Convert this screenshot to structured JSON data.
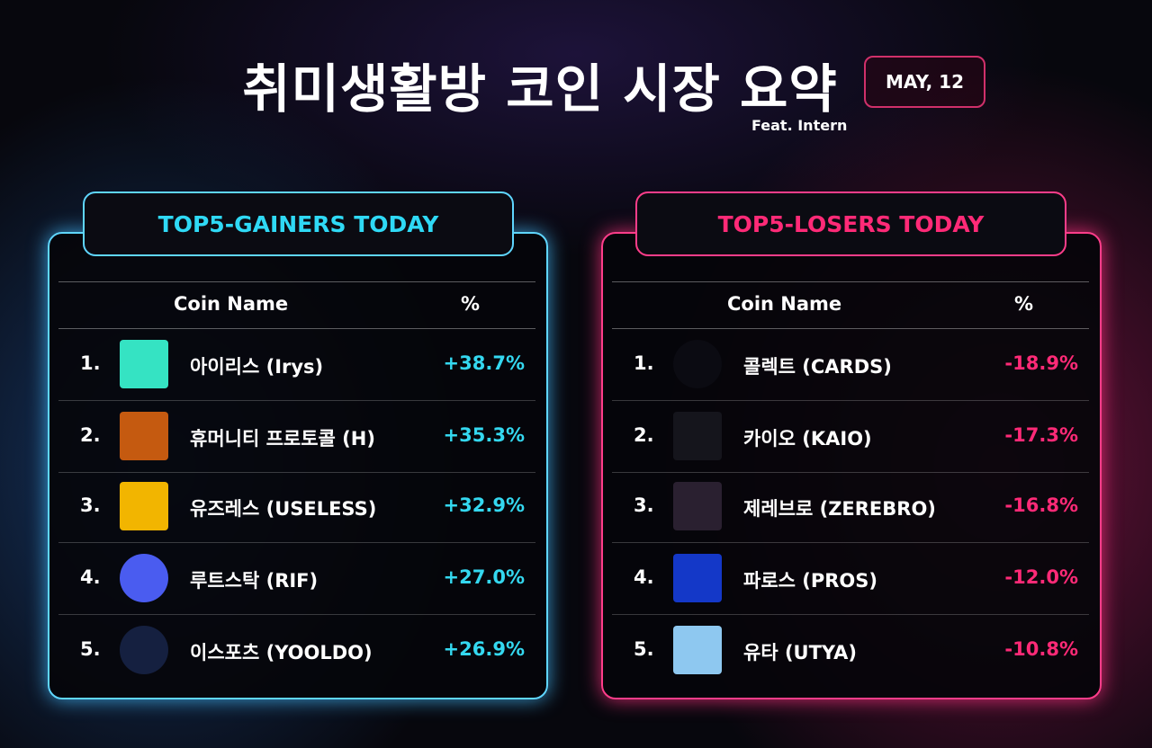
{
  "header": {
    "title": "취미생활방 코인 시장 요약",
    "date": "MAY, 12",
    "subtitle": "Feat. Intern"
  },
  "gainers": {
    "title": "TOP5-GAINERS TODAY",
    "columns": [
      "Coin Name",
      "%"
    ],
    "rows": [
      [
        "1.",
        "아이리스 (Irys)",
        "+38.7%"
      ],
      [
        "2.",
        "휴머니티 프로토콜 (H)",
        "+35.3%"
      ],
      [
        "3.",
        "유즈레스 (USELESS)",
        "+32.9%"
      ],
      [
        "4.",
        "루트스탁 (RIF)",
        "+27.0%"
      ],
      [
        "5.",
        "이스포츠 (YOOLDO)",
        "+26.9%"
      ]
    ]
  },
  "losers": {
    "title": "TOP5-LOSERS TODAY",
    "columns": [
      "Coin Name",
      "%"
    ],
    "rows": [
      [
        "1.",
        "콜렉트 (CARDS)",
        "-18.9%"
      ],
      [
        "2.",
        "카이오 (KAIO)",
        "-17.3%"
      ],
      [
        "3.",
        "제레브로 (ZEREBRO)",
        "-16.8%"
      ],
      [
        "4.",
        "파로스 (PROS)",
        "-12.0%"
      ],
      [
        "5.",
        "유타 (UTYA)",
        "-10.8%"
      ]
    ]
  }
}
